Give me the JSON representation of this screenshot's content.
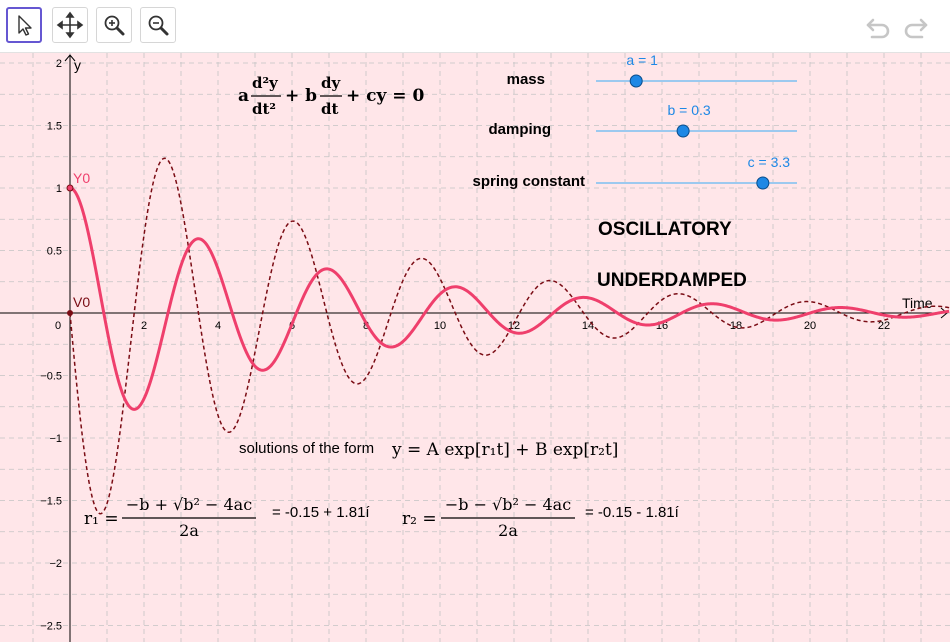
{
  "toolbar": {
    "tools": [
      {
        "name": "move",
        "icon": "cursor-arrow-icon",
        "active": true
      },
      {
        "name": "move-graphics-view",
        "icon": "move-cross-icon",
        "active": false
      },
      {
        "name": "zoom-in",
        "icon": "zoom-in-icon",
        "active": false
      },
      {
        "name": "zoom-out",
        "icon": "zoom-out-icon",
        "active": false
      }
    ],
    "undo_icon": "undo-icon",
    "redo_icon": "redo-icon"
  },
  "equation": {
    "a": "a",
    "d2y": "d²y",
    "dt2": "dt²",
    "plus1": "+ b",
    "dy": "dy",
    "dt": "dt",
    "rest": "+ cy = 0"
  },
  "sliders": [
    {
      "label": "mass",
      "readout": "a = 1",
      "value": 1,
      "min": 0,
      "max": 5,
      "color": "#1e88e5"
    },
    {
      "label": "damping",
      "readout": "b = 0.3",
      "value": 0.3,
      "min": -1,
      "max": 2,
      "color": "#1e88e5"
    },
    {
      "label": "spring constant",
      "readout": "c = 3.3",
      "value": 3.3,
      "min": -5,
      "max": 5,
      "color": "#1e88e5"
    }
  ],
  "status": {
    "type": "OSCILLATORY",
    "damping": "UNDERDAMPED"
  },
  "solutions": {
    "prefix": "solutions of the form",
    "formula": "y = A exp[r₁t] + B exp[r₂t]",
    "r1_label": "r₁ =",
    "r2_label": "r₂ =",
    "r1_num": "−b + √b² − 4ac",
    "r2_num": "−b − √b² − 4ac",
    "den": "2a",
    "r1_value": "= -0.15 + 1.81í",
    "r2_value": "= -0.15 - 1.81í"
  },
  "points": {
    "y0": "Y0",
    "v0": "V0",
    "y0_value": 1,
    "v0_value": 0
  },
  "axes": {
    "x_label": "Time",
    "y_label": "y",
    "x_ticks": [
      0,
      2,
      4,
      6,
      8,
      10,
      12,
      14,
      16,
      18,
      20,
      22
    ],
    "y_ticks": [
      -2.5,
      -2,
      -1.5,
      -1,
      -0.5,
      0.5,
      1,
      1.5,
      2
    ],
    "y_tick_labels": [
      "−2.5",
      "−2",
      "−1.5",
      "−1",
      "−0.5",
      "0.5",
      "1",
      "1.5",
      "2"
    ],
    "x_range": [
      -1.9,
      23.7
    ],
    "y_range": [
      -2.6,
      2.05
    ]
  },
  "colors": {
    "background": "#ffe6e9",
    "grid": "#c4c4c4",
    "solution": "#ef3f6c",
    "velocity": "#7a0c14",
    "slider": "#1e88e5"
  }
}
